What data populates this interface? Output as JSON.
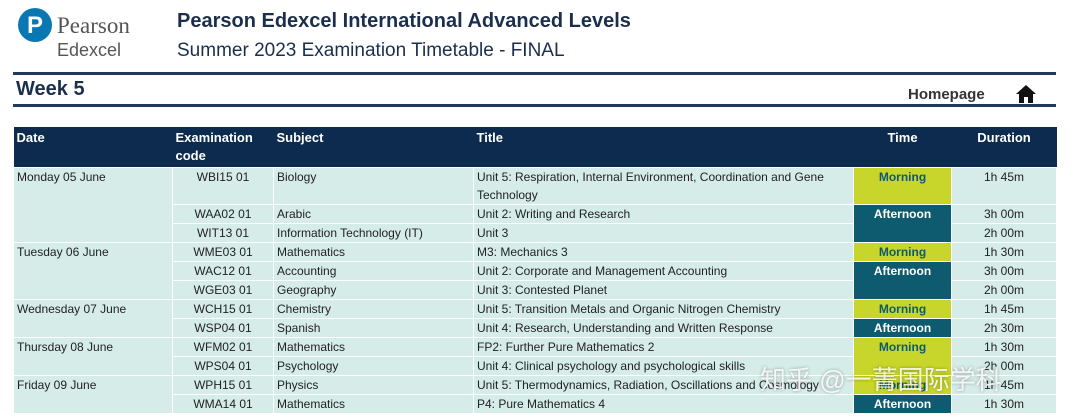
{
  "header": {
    "logo_top": "Pearson",
    "logo_bottom": "Edexcel",
    "logo_mark": "P",
    "title": "Pearson Edexcel International Advanced Levels",
    "subtitle": "Summer 2023 Examination Timetable - FINAL"
  },
  "week": "Week 5",
  "homepage": "Homepage",
  "table": {
    "headers": [
      "Date",
      "Examination code",
      "Subject",
      "Title",
      "Time",
      "Duration"
    ],
    "days": [
      {
        "date": "Monday 05 June",
        "sessions": [
          {
            "time": "Morning",
            "exams": [
              {
                "code": "WBI15 01",
                "subject": "Biology",
                "title": "Unit 5: Respiration, Internal Environment, Coordination and Gene Technology",
                "duration": "1h 45m"
              }
            ]
          },
          {
            "time": "Afternoon",
            "exams": [
              {
                "code": "WAA02 01",
                "subject": "Arabic",
                "title": "Unit 2: Writing and Research",
                "duration": "3h 00m"
              },
              {
                "code": "WIT13 01",
                "subject": "Information Technology (IT)",
                "title": "Unit 3",
                "duration": "2h 00m"
              }
            ]
          }
        ]
      },
      {
        "date": "Tuesday 06 June",
        "sessions": [
          {
            "time": "Morning",
            "exams": [
              {
                "code": "WME03 01",
                "subject": "Mathematics",
                "title": "M3: Mechanics 3",
                "duration": "1h 30m"
              }
            ]
          },
          {
            "time": "Afternoon",
            "exams": [
              {
                "code": "WAC12 01",
                "subject": "Accounting",
                "title": "Unit 2: Corporate and Management Accounting",
                "duration": "3h 00m"
              },
              {
                "code": "WGE03 01",
                "subject": "Geography",
                "title": "Unit 3: Contested Planet",
                "duration": "2h 00m"
              }
            ]
          }
        ]
      },
      {
        "date": "Wednesday 07 June",
        "sessions": [
          {
            "time": "Morning",
            "exams": [
              {
                "code": "WCH15 01",
                "subject": "Chemistry",
                "title": "Unit 5: Transition Metals and Organic Nitrogen Chemistry",
                "duration": "1h 45m"
              }
            ]
          },
          {
            "time": "Afternoon",
            "exams": [
              {
                "code": "WSP04 01",
                "subject": "Spanish",
                "title": "Unit 4: Research, Understanding and Written Response",
                "duration": "2h 30m"
              }
            ]
          }
        ]
      },
      {
        "date": "Thursday 08 June",
        "sessions": [
          {
            "time": "Morning",
            "exams": [
              {
                "code": "WFM02 01",
                "subject": "Mathematics",
                "title": "FP2: Further Pure Mathematics 2",
                "duration": "1h 30m"
              },
              {
                "code": "WPS04 01",
                "subject": "Psychology",
                "title": "Unit 4: Clinical psychology and psychological skills",
                "duration": "2h 00m"
              }
            ]
          }
        ]
      },
      {
        "date": "Friday 09 June",
        "sessions": [
          {
            "time": "Morning",
            "exams": [
              {
                "code": "WPH15 01",
                "subject": "Physics",
                "title": "Unit 5: Thermodynamics, Radiation, Oscillations and Cosmology",
                "duration": "1h 45m"
              }
            ]
          },
          {
            "time": "Afternoon",
            "exams": [
              {
                "code": "WMA14 01",
                "subject": "Mathematics",
                "title": "P4: Pure Mathematics 4",
                "duration": "1h 30m"
              }
            ]
          }
        ]
      }
    ]
  },
  "watermark": "知乎 @一菁国际学科"
}
